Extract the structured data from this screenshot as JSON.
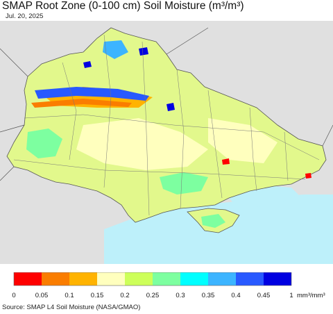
{
  "title": "SMAP Root Zone (0-100 cm) Soil Moisture (m³/m³)",
  "date": "Jul. 20, 2025",
  "source": "Source: SMAP L4 Soil Moisture (NASA/GMAO)",
  "legend": {
    "colors": [
      "#fe0000",
      "#fa7d00",
      "#ffb300",
      "#ffffbe",
      "#cdff5a",
      "#7dffa0",
      "#00ffff",
      "#3cb4ff",
      "#2859ff",
      "#0000e1"
    ],
    "ticks": [
      "0",
      "0.05",
      "0.1",
      "0.15",
      "0.2",
      "0.25",
      "0.3",
      "0.35",
      "0.4",
      "0.45",
      "1"
    ],
    "unit": "mm³/mm³"
  },
  "map": {
    "sea_color": "#bdf0fa",
    "outside_color": "#e0e0e0",
    "land_base_color": "#e2f88c"
  }
}
